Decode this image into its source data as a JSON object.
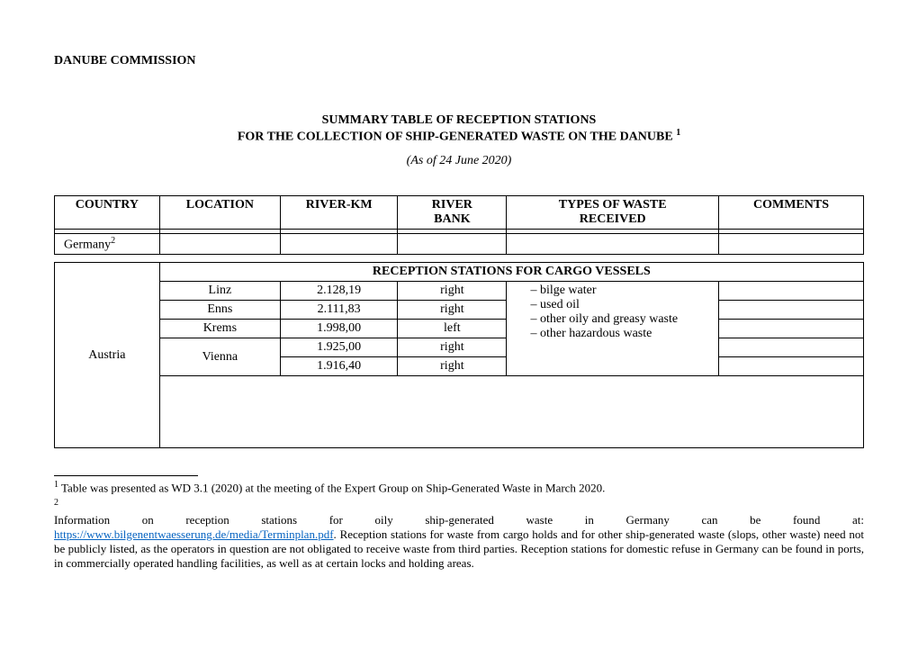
{
  "header": {
    "organization": "DANUBE COMMISSION"
  },
  "title": {
    "line1": "SUMMARY TABLE OF RECEPTION STATIONS",
    "line2_prefix": "FOR THE COLLECTION OF SHIP-GENERATED WASTE ON THE DANUBE ",
    "footnote1_marker": "1",
    "date_line": "(As of 24 June 2020)"
  },
  "table": {
    "columns": {
      "country": "COUNTRY",
      "location": "LOCATION",
      "riverkm": "RIVER-KM",
      "riverbank_line1": "RIVER",
      "riverbank_line2": "BANK",
      "waste_line1": "TYPES OF WASTE",
      "waste_line2": "RECEIVED",
      "comments": "COMMENTS"
    },
    "germany_label": "Germany",
    "germany_fn_marker": "2",
    "cargo_section_header": "RECEPTION STATIONS FOR CARGO VESSELS",
    "austria_label": "Austria",
    "rows": [
      {
        "location": "Linz",
        "riverkm": "2.128,19",
        "bank": "right"
      },
      {
        "location": "Enns",
        "riverkm": "2.111,83",
        "bank": "right"
      },
      {
        "location": "Krems",
        "riverkm": "1.998,00",
        "bank": "left"
      },
      {
        "location": "Vienna",
        "riverkm": "1.925,00",
        "bank": "right"
      },
      {
        "location": "",
        "riverkm": "1.916,40",
        "bank": "right"
      }
    ],
    "waste_items": [
      "bilge water",
      "used oil",
      "other oily and greasy waste",
      "other hazardous waste"
    ]
  },
  "footnotes": {
    "fn1_marker": "1",
    "fn1_text": " Table was presented as WD 3.1 (2020) at the meeting of the Expert Group on Ship-Generated Waste in March 2020.",
    "fn2_marker": "2",
    "fn2_spread": "Information on reception stations for oily ship-generated waste in Germany can be found at:",
    "fn2_link": "https://www.bilgenentwaesserung.de/media/Terminplan.pdf",
    "fn2_tail": ". Reception stations for waste from cargo holds and for other ship-generated waste (slops, other waste) need not be publicly listed, as the operators in question are not obligated to receive waste from third parties. Reception stations for domestic refuse in Germany can be found in ports, in commercially operated handling facilities, as well as at certain locks and holding areas."
  }
}
